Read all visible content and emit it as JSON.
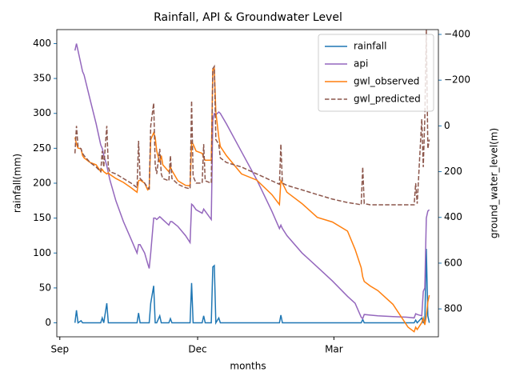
{
  "chart_data": {
    "type": "line",
    "title": "Rainfall, API & Groundwater Level",
    "xlabel": "months",
    "ylabel": "rainfall(mm)",
    "y2label": "ground_water_level(m)",
    "x": [
      10,
      11,
      12,
      14,
      15,
      16,
      20,
      24,
      27,
      28,
      29,
      31,
      32,
      33,
      37,
      42,
      47,
      50,
      51,
      52,
      53,
      56,
      58,
      59,
      60,
      62,
      63,
      64,
      66,
      67,
      68,
      72,
      73,
      74,
      78,
      83,
      86,
      87,
      88,
      90,
      94,
      95,
      96,
      100,
      101,
      102,
      103,
      105,
      106,
      110,
      120,
      130,
      140,
      145,
      146,
      147,
      150,
      160,
      170,
      180,
      190,
      195,
      199,
      200,
      201,
      205,
      210,
      220,
      230,
      234,
      235,
      236,
      239,
      240,
      241,
      242,
      243,
      244
    ],
    "xlim": [
      -2,
      250
    ],
    "xticks": [
      {
        "value": 0,
        "label": "Sep"
      },
      {
        "value": 91,
        "label": "Dec"
      },
      {
        "value": 181,
        "label": "Mar"
      }
    ],
    "ylim": [
      -20,
      420
    ],
    "yticks": [
      0,
      50,
      100,
      150,
      200,
      250,
      300,
      350,
      400
    ],
    "y2lim": [
      922,
      -421
    ],
    "y2ticks": [
      {
        "value": -400,
        "label": "−400"
      },
      {
        "value": -200,
        "label": "−200"
      },
      0,
      200,
      400,
      600,
      800
    ],
    "axis_label_color": "#1f77b4",
    "legend": "upper right",
    "series": [
      {
        "name": "rainfall",
        "color": "#1f77b4",
        "linestyle": "solid",
        "values": [
          0,
          18,
          0,
          3,
          0,
          0,
          0,
          0,
          0,
          7,
          0,
          28,
          0,
          0,
          0,
          0,
          0,
          0,
          0,
          14,
          0,
          0,
          0,
          0,
          28,
          53,
          0,
          0,
          10,
          0,
          0,
          0,
          6,
          0,
          0,
          0,
          0,
          57,
          0,
          0,
          0,
          10,
          0,
          0,
          80,
          82,
          0,
          7,
          0,
          0,
          0,
          0,
          0,
          0,
          11,
          0,
          0,
          0,
          0,
          0,
          0,
          0,
          0,
          5,
          0,
          0,
          0,
          0,
          0,
          0,
          4,
          0,
          7,
          0,
          0,
          106,
          10,
          0
        ]
      },
      {
        "name": "api",
        "color": "#9467bd",
        "linestyle": "solid",
        "values": [
          390,
          400,
          390,
          370,
          360,
          355,
          320,
          285,
          255,
          250,
          240,
          225,
          215,
          205,
          175,
          145,
          120,
          105,
          100,
          112,
          112,
          100,
          85,
          78,
          100,
          150,
          150,
          148,
          152,
          150,
          148,
          140,
          145,
          145,
          138,
          125,
          115,
          170,
          168,
          162,
          157,
          163,
          160,
          148,
          290,
          300,
          298,
          302,
          300,
          285,
          245,
          205,
          160,
          135,
          140,
          135,
          125,
          100,
          80,
          60,
          38,
          28,
          8,
          6,
          12,
          11,
          10,
          9,
          8,
          7,
          13,
          12,
          10,
          45,
          50,
          150,
          160,
          162
        ]
      },
      {
        "name": "gwl_observed",
        "color": "#ff7f0e",
        "linestyle": "solid",
        "axis": "y2",
        "values": [
          50,
          80,
          97,
          100,
          130,
          140,
          160,
          170,
          200,
          190,
          200,
          210,
          205,
          212,
          230,
          247,
          270,
          285,
          290,
          240,
          237,
          250,
          280,
          275,
          60,
          30,
          50,
          110,
          160,
          130,
          170,
          200,
          180,
          195,
          240,
          260,
          262,
          70,
          80,
          110,
          120,
          140,
          150,
          150,
          -245,
          -250,
          -60,
          50,
          90,
          130,
          210,
          237,
          300,
          344,
          240,
          250,
          290,
          340,
          400,
          420,
          460,
          540,
          620,
          660,
          680,
          700,
          720,
          780,
          880,
          900,
          880,
          890,
          860,
          840,
          870,
          830,
          770,
          740
        ]
      },
      {
        "name": "gwl_predicted",
        "color": "#8c564b",
        "linestyle": "dashed",
        "axis": "y2",
        "values": [
          120,
          0,
          90,
          100,
          120,
          130,
          160,
          180,
          200,
          110,
          180,
          0,
          180,
          200,
          210,
          230,
          250,
          265,
          270,
          65,
          230,
          250,
          270,
          275,
          0,
          -100,
          170,
          210,
          100,
          210,
          230,
          240,
          130,
          230,
          255,
          270,
          275,
          -110,
          220,
          250,
          250,
          80,
          240,
          250,
          -250,
          -260,
          60,
          80,
          140,
          160,
          180,
          210,
          240,
          255,
          80,
          250,
          260,
          280,
          300,
          320,
          335,
          340,
          345,
          180,
          340,
          345,
          345,
          345,
          345,
          345,
          250,
          340,
          -30,
          180,
          -30,
          -420,
          100,
          60
        ]
      }
    ]
  }
}
